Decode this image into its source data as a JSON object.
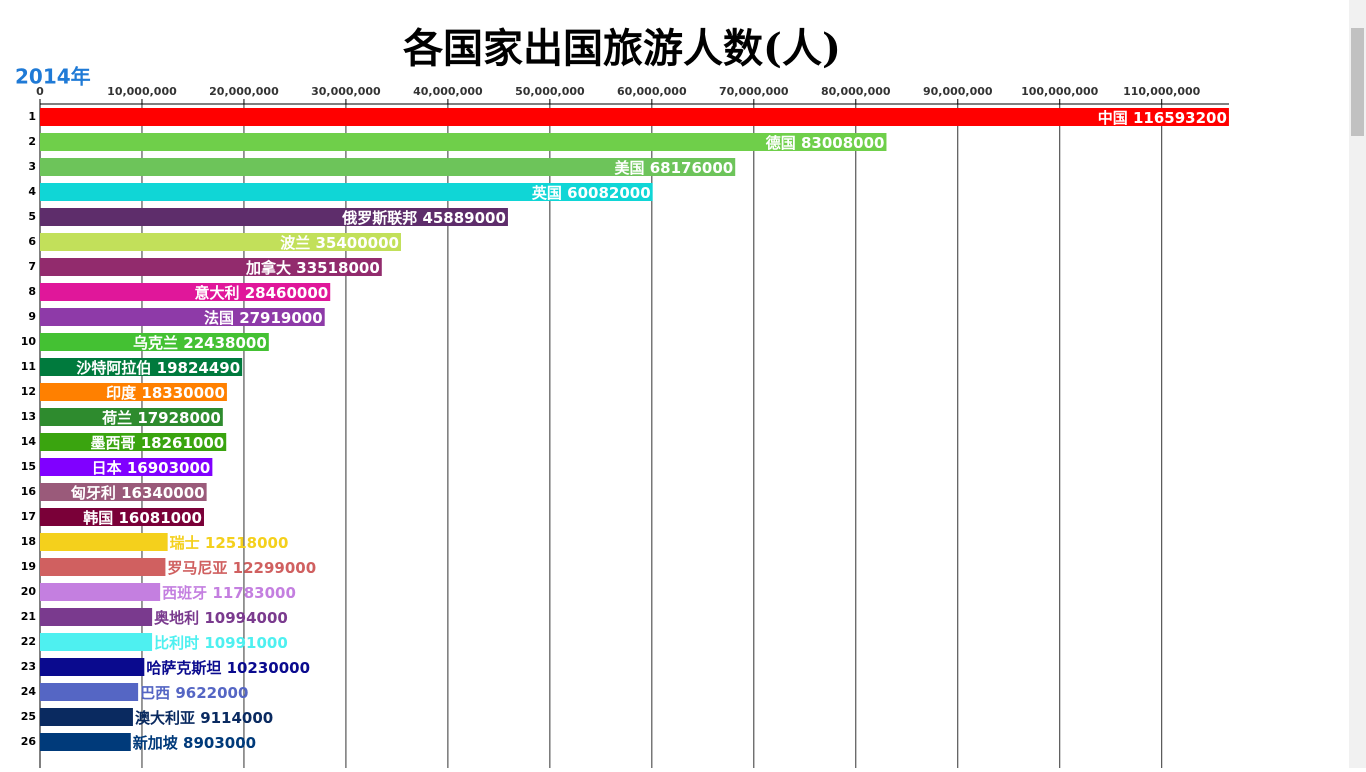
{
  "chart_data": {
    "type": "bar",
    "title": "各国家出国旅游人数(人)",
    "period": "2014年",
    "categories": [
      "中国",
      "德国",
      "美国",
      "英国",
      "俄罗斯联邦",
      "波兰",
      "加拿大",
      "意大利",
      "法国",
      "乌克兰",
      "沙特阿拉伯",
      "印度",
      "荷兰",
      "墨西哥",
      "日本",
      "匈牙利",
      "韩国",
      "瑞士",
      "罗马尼亚",
      "西班牙",
      "奥地利",
      "比利时",
      "哈萨克斯坦",
      "巴西",
      "澳大利亚",
      "新加坡"
    ],
    "ranks": [
      1,
      2,
      3,
      4,
      5,
      6,
      7,
      8,
      9,
      10,
      11,
      12,
      13,
      14,
      15,
      16,
      17,
      18,
      19,
      20,
      21,
      22,
      23,
      24,
      25,
      26
    ],
    "values": [
      116593200,
      83008000,
      68176000,
      60082000,
      45889000,
      35400000,
      33518000,
      28460000,
      27919000,
      22438000,
      19824490,
      18330000,
      17928000,
      18261000,
      16903000,
      16340000,
      16081000,
      12518000,
      12299000,
      11783000,
      10994000,
      10991000,
      10230000,
      9622000,
      9114000,
      8903000
    ],
    "colors": [
      "#ff0000",
      "#6fcf4a",
      "#6dc45a",
      "#10d6d6",
      "#5e2d6b",
      "#c2e05a",
      "#922b6d",
      "#e0179a",
      "#8e3aa8",
      "#44c133",
      "#007a3d",
      "#ff8000",
      "#2e8b2e",
      "#3aa40f",
      "#8000ff",
      "#9a5a7a",
      "#7a0038",
      "#f4d01c",
      "#d06060",
      "#c47fe0",
      "#7a3a8e",
      "#4ef0f0",
      "#0a0a8e",
      "#5566c4",
      "#0a2a60",
      "#003a7a"
    ],
    "xlim": [
      0,
      116600000
    ],
    "xticks": [
      0,
      {
        "value": 10000000,
        "label": "10,000,000"
      },
      {
        "value": 20000000,
        "label": "20,000,000"
      },
      {
        "value": 30000000,
        "label": "30,000,000"
      },
      {
        "value": 40000000,
        "label": "40,000,000"
      },
      {
        "value": 50000000,
        "label": "50,000,000"
      },
      {
        "value": 60000000,
        "label": "60,000,000"
      },
      {
        "value": 70000000,
        "label": "70,000,000"
      },
      {
        "value": 80000000,
        "label": "80,000,000"
      },
      {
        "value": 90000000,
        "label": "90,000,000"
      },
      {
        "value": 100000000,
        "label": "100,000,000"
      },
      {
        "value": 110000000,
        "label": "110,000,000"
      }
    ],
    "grid": true
  }
}
